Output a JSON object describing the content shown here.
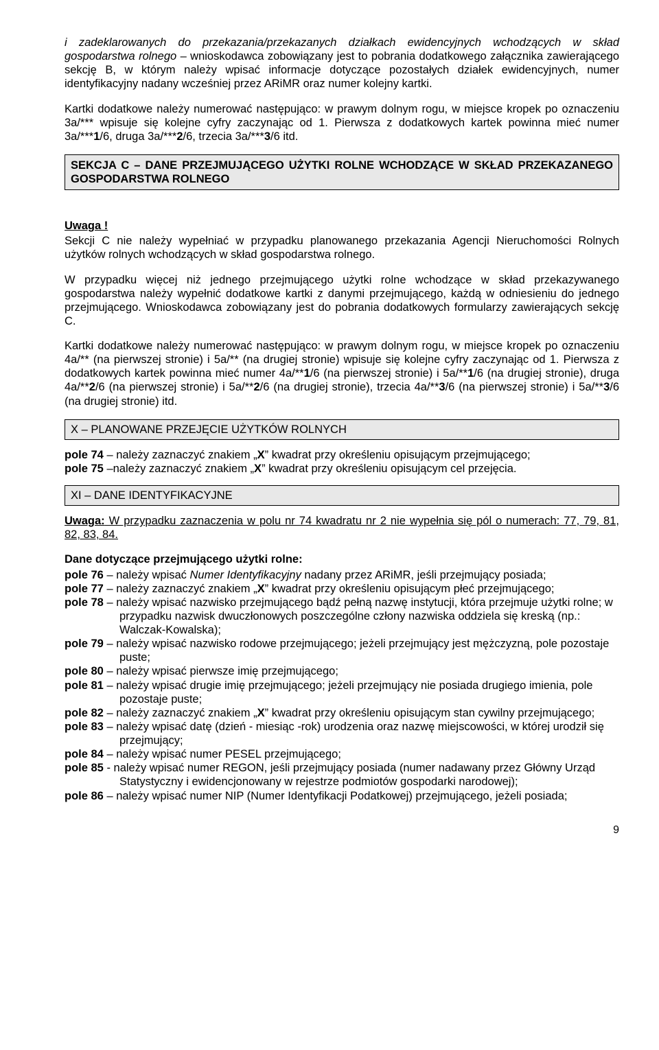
{
  "intro1_a": "i zadeklarowanych do przekazania/przekazanych działkach ewidencyjnych wchodzących w skład gospodarstwa rolnego",
  "intro1_b": " – wnioskodawca zobowiązany jest to pobrania dodatkowego załącznika zawierającego sekcję B, w którym należy wpisać informacje dotyczące pozostałych działek ewidencyjnych, numer identyfikacyjny nadany wcześniej przez ARiMR oraz numer kolejny kartki.",
  "intro2_a": "Kartki dodatkowe należy numerować następująco: w prawym dolnym rogu, w miejsce kropek po oznaczeniu 3a/*** wpisuje się kolejne cyfry zaczynając od 1. Pierwsza z dodatkowych kartek powinna mieć numer  3a/***",
  "intro2_b": "1",
  "intro2_c": "/6, druga 3a/***",
  "intro2_d": "2",
  "intro2_e": "/6, trzecia 3a/***",
  "intro2_f": "3",
  "intro2_g": "/6 itd.",
  "sekcjaC": "SEKCJA C – DANE PRZEJMUJĄCEGO UŻYTKI ROLNE WCHODZĄCE W SKŁAD PRZEKAZANEGO GOSPODARSTWA ROLNEGO",
  "uwaga": "Uwaga !",
  "uwaga_p1": "Sekcji C nie należy wypełniać w przypadku planowanego przekazania Agencji Nieruchomości Rolnych użytków rolnych wchodzących w skład gospodarstwa rolnego.",
  "uwaga_p2": "W przypadku więcej niż jednego przejmującego użytki rolne wchodzące w skład przekazywanego gospodarstwa należy wypełnić dodatkowe kartki z danymi przejmującego, każdą w odniesieniu do jednego przejmującego. Wnioskodawca zobowiązany jest do pobrania dodatkowych formularzy zawierających sekcję C.",
  "uwaga_p3_a": "Kartki dodatkowe należy numerować następująco: w prawym dolnym rogu, w miejsce kropek po oznaczeniu 4a/** (na pierwszej stronie) i 5a/** (na drugiej stronie) wpisuje się kolejne cyfry zaczynając od 1. Pierwsza z dodatkowych kartek powinna mieć numer 4a/**",
  "b1": "1",
  "uwaga_p3_b": "/6 (na pierwszej stronie) i 5a/**",
  "b2": "1",
  "uwaga_p3_c": "/6 (na drugiej stronie), druga 4a/**",
  "b3": "2",
  "uwaga_p3_d": "/6 (na pierwszej stronie) i 5a/**",
  "b4": "2",
  "uwaga_p3_e": "/6 (na drugiej stronie), trzecia 4a/**",
  "b5": "3",
  "uwaga_p3_f": "/6 (na pierwszej stronie) i 5a/**",
  "b6": "3",
  "uwaga_p3_g": "/6 (na drugiej stronie) itd.",
  "sectX": "X – PLANOWANE PRZEJĘCIE UŻYTKÓW ROLNYCH",
  "p74_a": "pole 74",
  "p74_b": " – należy zaznaczyć znakiem „",
  "p74_c": "X",
  "p74_d": "” kwadrat przy określeniu opisującym przejmującego;",
  "p75_a": "pole 75",
  "p75_b": " –należy zaznaczyć znakiem „",
  "p75_c": "X",
  "p75_d": "” kwadrat przy określeniu opisującym cel przejęcia.",
  "sectXI": "XI – DANE IDENTYFIKACYJNE",
  "uwaga2_a": "Uwaga:",
  "uwaga2_b": " W przypadku zaznaczenia w polu nr 74  kwadratu nr 2 nie wypełnia się pól o numerach: 77, 79, 81, 82, 83, 84.",
  "subhead1": "Dane dotyczące przejmującego użytki rolne:",
  "p76_a": "pole 76",
  "p76_b": " – należy wpisać ",
  "p76_c": "Numer Identyfikacyjny",
  "p76_d": " nadany przez ARiMR, jeśli przejmujący posiada;",
  "p77_a": "pole 77",
  "p77_b": " – należy zaznaczyć znakiem „",
  "p77_c": "X",
  "p77_d": "” kwadrat przy określeniu opisującym płeć przejmującego;",
  "p78_a": "pole 78",
  "p78_b": " – należy wpisać nazwisko przejmującego bądź pełną nazwę instytucji, która przejmuje użytki rolne; w przypadku nazwisk dwuczłonowych poszczególne człony nazwiska oddziela się kreską (np.: Walczak-Kowalska);",
  "p79_a": "pole 79",
  "p79_b": " – należy wpisać nazwisko rodowe przejmującego; jeżeli przejmujący jest mężczyzną, pole pozostaje puste;",
  "p80_a": "pole 80",
  "p80_b": " – należy wpisać pierwsze imię przejmującego;",
  "p81_a": "pole 81",
  "p81_b": " – należy wpisać drugie imię przejmującego; jeżeli przejmujący nie posiada drugiego imienia, pole pozostaje puste;",
  "p82_a": "pole 82",
  "p82_b": " – należy zaznaczyć znakiem „",
  "p82_c": "X",
  "p82_d": "” kwadrat przy określeniu opisującym stan cywilny przejmującego;",
  "p83_a": "pole 83",
  "p83_b": " – należy wpisać datę (dzień - miesiąc -rok) urodzenia oraz nazwę miejscowości, w której urodził się przejmujący;",
  "p84_a": "pole 84",
  "p84_b": " – należy wpisać numer PESEL przejmującego;",
  "p85_a": "pole 85",
  "p85_b": " - należy wpisać numer REGON, jeśli przejmujący posiada (numer nadawany przez Główny Urząd Statystyczny i ewidencjonowany w rejestrze podmiotów gospodarki narodowej);",
  "p86_a": "pole 86",
  "p86_b": " – należy wpisać numer NIP (Numer Identyfikacji Podatkowej) przejmującego, jeżeli posiada;",
  "pagenum": "9"
}
